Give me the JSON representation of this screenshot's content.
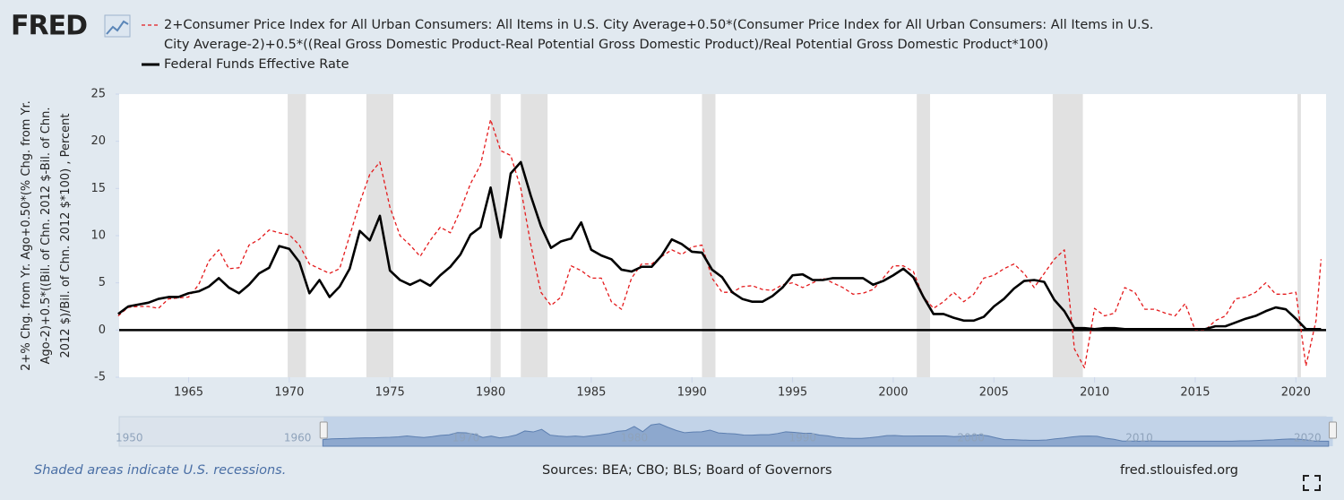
{
  "logo": "FRED",
  "chart_data": {
    "type": "line",
    "y_axis_label": "2+% Chg. from Yr. Ago+0.50*(% Chg. from Yr. Ago-2)+0.5*((Bil. of Chn. 2012 $-Bil. of Chn. 2012 $)/Bil. of Chn. 2012 $*100) , Percent",
    "x": [
      1961.5,
      1962,
      1962.5,
      1963,
      1963.5,
      1964,
      1964.5,
      1965,
      1965.5,
      1966,
      1966.5,
      1967,
      1967.5,
      1968,
      1968.5,
      1969,
      1969.5,
      1970,
      1970.5,
      1971,
      1971.5,
      1972,
      1972.5,
      1973,
      1973.5,
      1974,
      1974.5,
      1975,
      1975.5,
      1976,
      1976.5,
      1977,
      1977.5,
      1978,
      1978.5,
      1979,
      1979.5,
      1980,
      1980.5,
      1981,
      1981.5,
      1982,
      1982.5,
      1983,
      1983.5,
      1984,
      1984.5,
      1985,
      1985.5,
      1986,
      1986.5,
      1987,
      1987.5,
      1988,
      1988.5,
      1989,
      1989.5,
      1990,
      1990.5,
      1991,
      1991.5,
      1992,
      1992.5,
      1993,
      1993.5,
      1994,
      1994.5,
      1995,
      1995.5,
      1996,
      1996.5,
      1997,
      1997.5,
      1998,
      1998.5,
      1999,
      1999.5,
      2000,
      2000.5,
      2001,
      2001.5,
      2002,
      2002.5,
      2003,
      2003.5,
      2004,
      2004.5,
      2005,
      2005.5,
      2006,
      2006.5,
      2007,
      2007.5,
      2008,
      2008.5,
      2009,
      2009.5,
      2010,
      2010.5,
      2011,
      2011.5,
      2012,
      2012.5,
      2013,
      2013.5,
      2014,
      2014.5,
      2015,
      2015.5,
      2016,
      2016.5,
      2017,
      2017.5,
      2018,
      2018.5,
      2019,
      2019.5,
      2020,
      2020.5,
      2021,
      2021.25
    ],
    "series": [
      {
        "name": "2+Consumer Price Index for All Urban Consumers: All Items in U.S. City Average+0.50*(Consumer Price Index for All Urban Consumers: All Items in U.S. City Average-2)+0.5*((Real Gross Domestic Product-Real Potential Gross Domestic Product)/Real Potential Gross Domestic Product*100)",
        "color": "#e41a1c",
        "style": "dashed",
        "values": [
          1.5,
          2.4,
          2.5,
          2.5,
          2.3,
          3.3,
          3.4,
          3.5,
          4.8,
          7.3,
          8.5,
          6.5,
          6.6,
          9.0,
          9.6,
          10.6,
          10.3,
          10.1,
          9.0,
          7.0,
          6.5,
          6.0,
          6.5,
          10.0,
          13.5,
          16.5,
          17.8,
          13.0,
          10.0,
          9.0,
          7.8,
          9.5,
          10.9,
          10.3,
          12.7,
          15.5,
          17.5,
          22.3,
          19.0,
          18.5,
          15.0,
          9.0,
          4.0,
          2.6,
          3.5,
          6.8,
          6.3,
          5.5,
          5.5,
          3.0,
          2.2,
          5.5,
          7.0,
          7.0,
          7.8,
          8.5,
          8.0,
          8.8,
          9.0,
          5.5,
          4.0,
          4.0,
          4.6,
          4.7,
          4.3,
          4.2,
          4.8,
          5.0,
          4.5,
          5.0,
          5.5,
          5.0,
          4.5,
          3.8,
          3.9,
          4.3,
          5.5,
          6.8,
          6.8,
          6.2,
          3.5,
          2.3,
          3.0,
          4.0,
          3.0,
          3.8,
          5.5,
          5.8,
          6.5,
          7.0,
          6.0,
          4.5,
          6.0,
          7.5,
          8.5,
          -2.0,
          -4.0,
          2.3,
          1.5,
          1.8,
          4.5,
          4.0,
          2.2,
          2.2,
          1.8,
          1.5,
          2.8,
          0.0,
          0.0,
          1.0,
          1.5,
          3.3,
          3.5,
          4.0,
          5.0,
          3.8,
          3.8,
          4.0,
          -3.8,
          1.0,
          7.5
        ]
      },
      {
        "name": "Federal Funds Effective Rate",
        "color": "#000000",
        "style": "solid",
        "values": [
          1.7,
          2.5,
          2.7,
          2.9,
          3.3,
          3.5,
          3.5,
          3.9,
          4.1,
          4.6,
          5.5,
          4.5,
          3.9,
          4.8,
          6.0,
          6.6,
          8.9,
          8.6,
          7.2,
          3.9,
          5.3,
          3.5,
          4.6,
          6.5,
          10.5,
          9.5,
          12.1,
          6.3,
          5.3,
          4.8,
          5.3,
          4.7,
          5.8,
          6.7,
          8.0,
          10.1,
          10.9,
          15.1,
          9.8,
          16.6,
          17.8,
          14.2,
          11.0,
          8.7,
          9.4,
          9.7,
          11.4,
          8.5,
          7.9,
          7.5,
          6.4,
          6.2,
          6.7,
          6.7,
          7.9,
          9.6,
          9.1,
          8.3,
          8.2,
          6.4,
          5.6,
          4.0,
          3.3,
          3.0,
          3.0,
          3.6,
          4.5,
          5.8,
          5.9,
          5.3,
          5.3,
          5.5,
          5.5,
          5.5,
          5.5,
          4.8,
          5.2,
          5.8,
          6.5,
          5.6,
          3.5,
          1.7,
          1.7,
          1.3,
          1.0,
          1.0,
          1.4,
          2.5,
          3.3,
          4.4,
          5.2,
          5.3,
          5.1,
          3.2,
          2.0,
          0.2,
          0.2,
          0.1,
          0.2,
          0.2,
          0.1,
          0.1,
          0.1,
          0.1,
          0.1,
          0.1,
          0.1,
          0.1,
          0.1,
          0.4,
          0.4,
          0.8,
          1.2,
          1.5,
          2.0,
          2.4,
          2.2,
          1.2,
          0.1,
          0.1,
          0.1
        ]
      }
    ],
    "xlim": [
      1961.55,
      2021.5
    ],
    "xticks": [
      1965,
      1970,
      1975,
      1980,
      1985,
      1990,
      1995,
      2000,
      2005,
      2010,
      2015,
      2020
    ],
    "ylim": [
      -5,
      25
    ],
    "yticks": [
      -5,
      0,
      5,
      10,
      15,
      20,
      25
    ],
    "recessions": [
      [
        1969.92,
        1970.83
      ],
      [
        1973.83,
        1975.17
      ],
      [
        1980.0,
        1980.5
      ],
      [
        1981.5,
        1982.83
      ],
      [
        1990.5,
        1991.17
      ],
      [
        2001.17,
        2001.83
      ],
      [
        2007.92,
        2009.42
      ],
      [
        2020.08,
        2020.25
      ]
    ],
    "navigator": {
      "xlim": [
        1949.4,
        2021.1
      ],
      "xticks": [
        1950,
        1960,
        1970,
        1980,
        1990,
        2000,
        2010,
        2020
      ]
    }
  },
  "footer": {
    "note": "Shaded areas indicate U.S. recessions.",
    "sources": "Sources: BEA; CBO; BLS; Board of Governors",
    "url": "fred.stlouisfed.org"
  }
}
